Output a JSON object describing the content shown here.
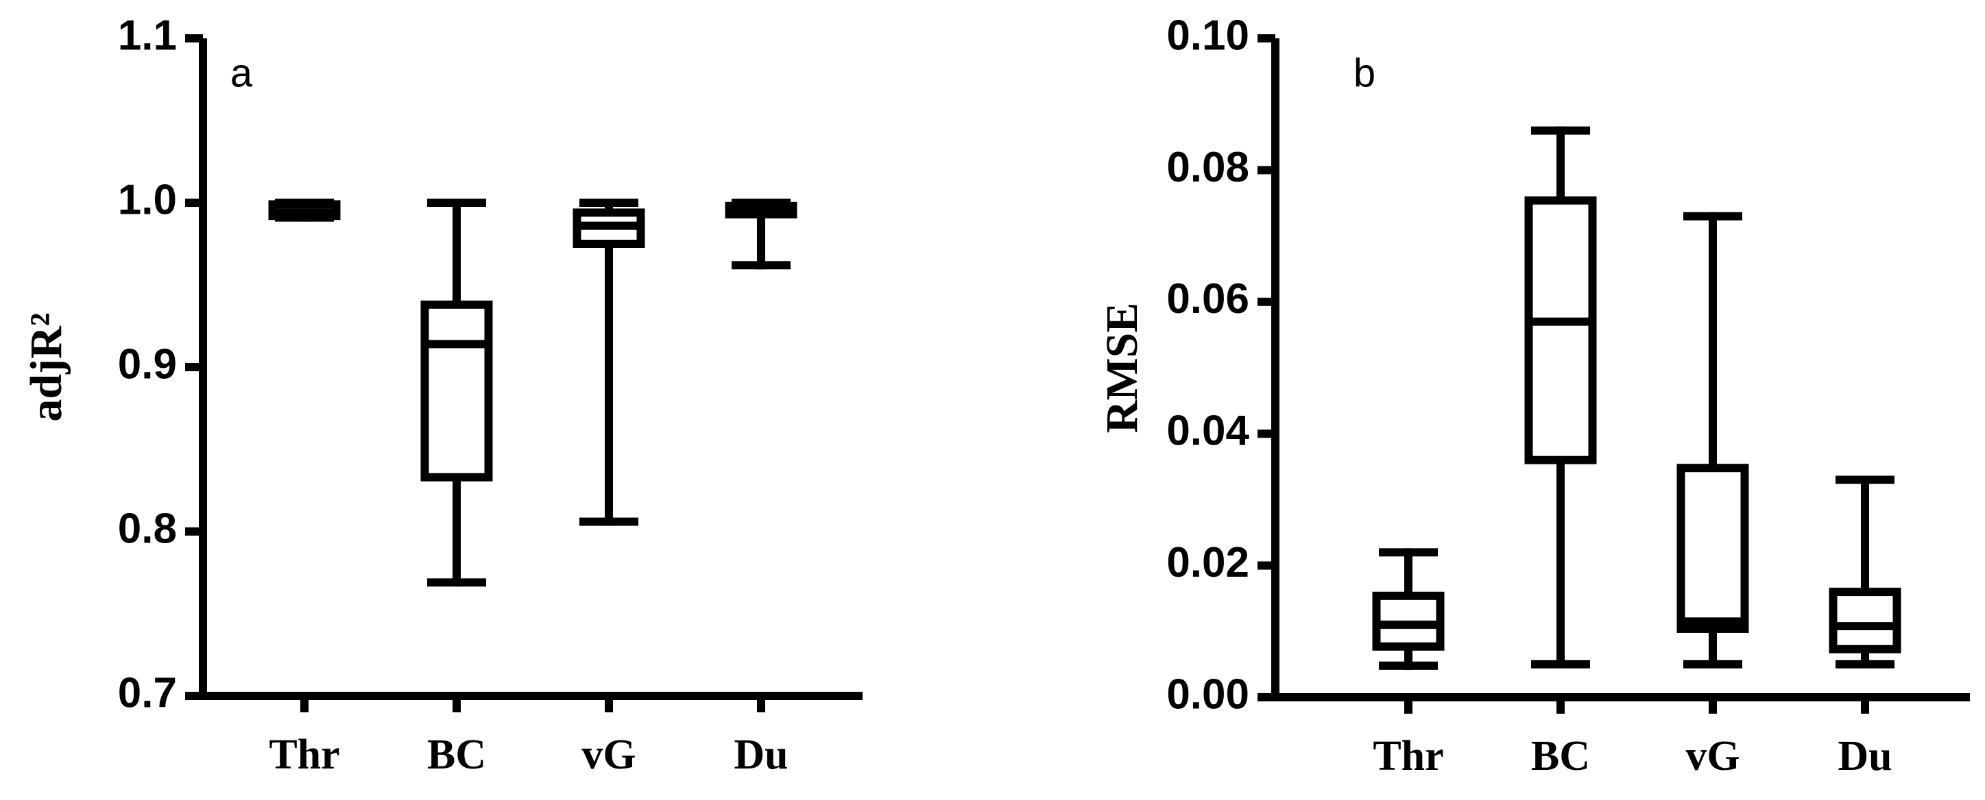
{
  "chart_data": [
    {
      "type": "box",
      "title": "a",
      "y_label": "adjR²",
      "categories": [
        "Thr",
        "BC",
        "vG",
        "Du"
      ],
      "min": [
        0.991,
        0.769,
        0.806,
        0.962
      ],
      "q1": [
        0.992,
        0.833,
        0.975,
        0.993
      ],
      "median": [
        0.994,
        0.914,
        0.986,
        0.996
      ],
      "q3": [
        0.999,
        0.938,
        0.994,
        0.998
      ],
      "max": [
        1.0,
        1.0,
        1.0,
        1.0
      ],
      "color": "#000000",
      "ylim": [
        0.7,
        1.1
      ],
      "yticks": [
        0.7,
        0.8,
        0.9,
        {
          "value": 1,
          "label": "1.0"
        },
        1.1
      ]
    },
    {
      "type": "box",
      "title": "b",
      "y_label": "RMSE",
      "categories": [
        "Thr",
        "BC",
        "vG",
        "Du"
      ],
      "min": [
        0.0048,
        0.005,
        0.005,
        0.005
      ],
      "q1": [
        0.0077,
        0.036,
        0.0104,
        0.0073
      ],
      "median": [
        0.011,
        0.057,
        0.0115,
        0.0108
      ],
      "q3": [
        0.0154,
        0.0754,
        0.0348,
        0.016
      ],
      "max": [
        0.022,
        0.086,
        0.073,
        0.033
      ],
      "color": "#000000",
      "ylim": [
        0,
        0.1
      ],
      "yticks": [
        {
          "value": 0,
          "label": "0.00"
        },
        {
          "value": 0.02,
          "label": "0.02"
        },
        {
          "value": 0.04,
          "label": "0.04"
        },
        {
          "value": 0.06,
          "label": "0.06"
        },
        {
          "value": 0.08,
          "label": "0.08"
        },
        {
          "value": 0.1,
          "label": "0.10"
        }
      ]
    }
  ]
}
